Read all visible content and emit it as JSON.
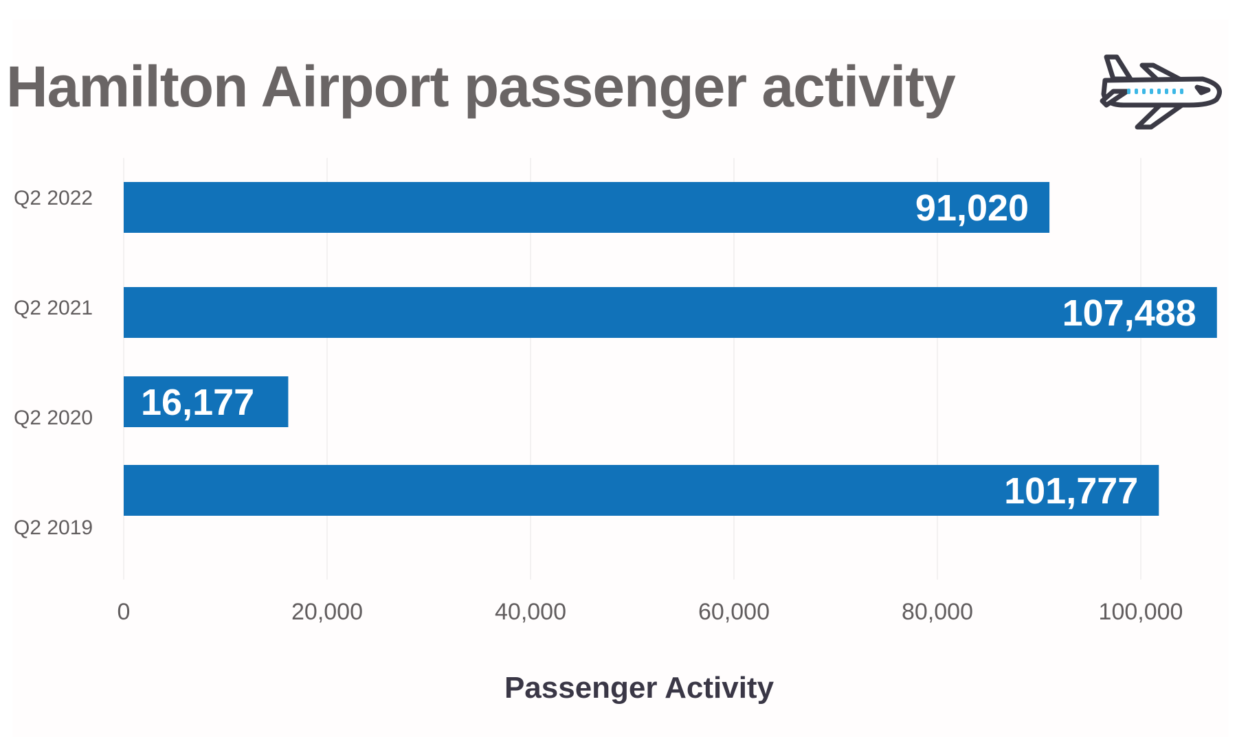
{
  "chart_data": {
    "type": "bar",
    "orientation": "horizontal",
    "title": "Hamilton Airport passenger activity",
    "xlabel": "Passenger Activity",
    "ylabel": "",
    "categories": [
      "Q2 2022",
      "Q2 2021",
      "Q2 2020",
      "Q2 2019"
    ],
    "values": [
      91020,
      107488,
      16177,
      101777
    ],
    "value_labels": [
      "91,020",
      "107,488",
      "16,177",
      "101,777"
    ],
    "xlim": [
      0,
      108000
    ],
    "xticks": [
      0,
      20000,
      40000,
      60000,
      80000,
      100000
    ],
    "xtick_labels": [
      "0",
      "20,000",
      "40,000",
      "60,000",
      "80,000",
      "100,000"
    ],
    "grid": true,
    "bar_color": "#1172b9",
    "icon": "airplane-icon"
  }
}
